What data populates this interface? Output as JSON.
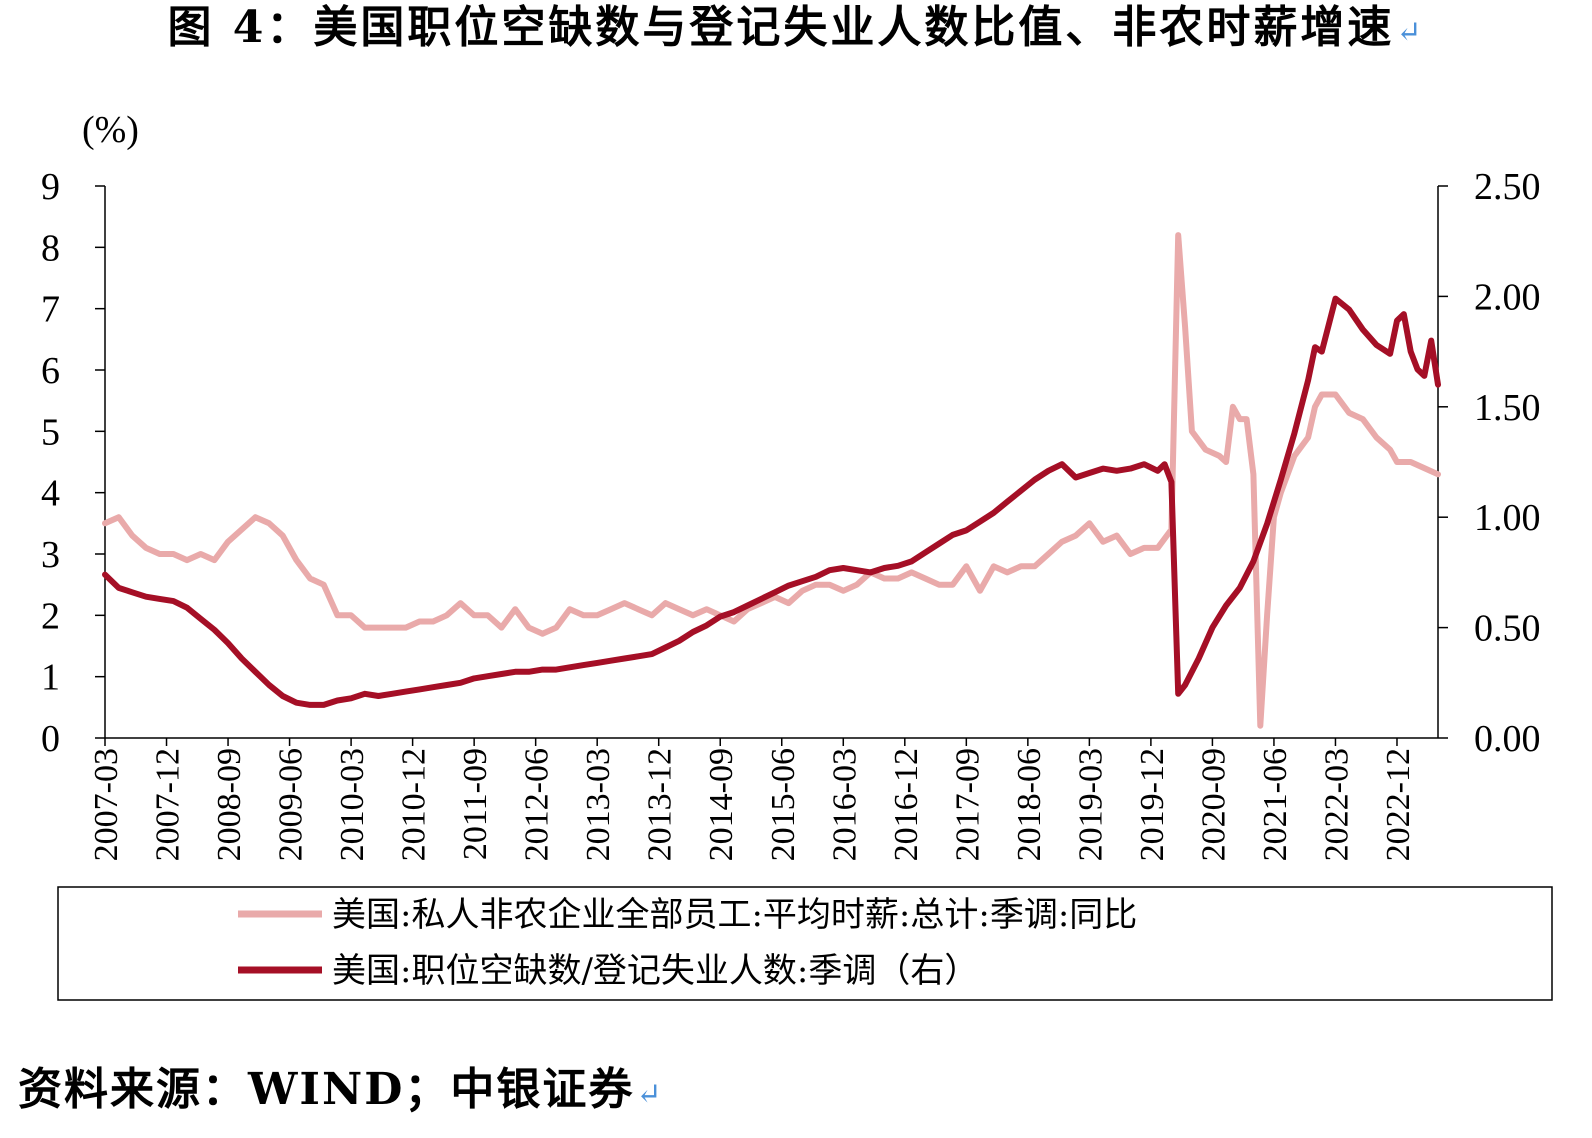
{
  "figure": {
    "title": "图 4：美国职位空缺数与登记失业人数比值、非农时薪增速",
    "source": "资料来源：WIND；中银证券",
    "return_mark": "↵"
  },
  "chart_data": {
    "type": "line",
    "ylabel_left": "(%)",
    "ylim_left": [
      0,
      9
    ],
    "yticks_left": [
      "0",
      "1",
      "2",
      "3",
      "4",
      "5",
      "6",
      "7",
      "8",
      "9"
    ],
    "ylim_right": [
      0,
      2.5
    ],
    "yticks_right": [
      "0.00",
      "0.50",
      "1.00",
      "1.50",
      "2.00",
      "2.50"
    ],
    "x_start": "2007-03",
    "x_end": "2023-06",
    "xticks": [
      "2007-03",
      "2007-12",
      "2008-09",
      "2009-06",
      "2010-03",
      "2010-12",
      "2011-09",
      "2012-06",
      "2013-03",
      "2013-12",
      "2014-09",
      "2015-06",
      "2016-03",
      "2016-12",
      "2017-09",
      "2018-06",
      "2019-03",
      "2019-12",
      "2020-09",
      "2021-06",
      "2022-03",
      "2022-12"
    ],
    "legend_position": "bottom",
    "series": [
      {
        "name": "美国:私人非农企业全部员工:平均时薪:总计:季调:同比",
        "axis": "left",
        "color": "#e9aaaa",
        "points": [
          [
            "2007-03",
            3.5
          ],
          [
            "2007-05",
            3.6
          ],
          [
            "2007-07",
            3.3
          ],
          [
            "2007-09",
            3.1
          ],
          [
            "2007-11",
            3.0
          ],
          [
            "2008-01",
            3.0
          ],
          [
            "2008-03",
            2.9
          ],
          [
            "2008-05",
            3.0
          ],
          [
            "2008-07",
            2.9
          ],
          [
            "2008-09",
            3.2
          ],
          [
            "2008-11",
            3.4
          ],
          [
            "2009-01",
            3.6
          ],
          [
            "2009-03",
            3.5
          ],
          [
            "2009-05",
            3.3
          ],
          [
            "2009-07",
            2.9
          ],
          [
            "2009-09",
            2.6
          ],
          [
            "2009-11",
            2.5
          ],
          [
            "2010-01",
            2.0
          ],
          [
            "2010-03",
            2.0
          ],
          [
            "2010-05",
            1.8
          ],
          [
            "2010-07",
            1.8
          ],
          [
            "2010-09",
            1.8
          ],
          [
            "2010-11",
            1.8
          ],
          [
            "2011-01",
            1.9
          ],
          [
            "2011-03",
            1.9
          ],
          [
            "2011-05",
            2.0
          ],
          [
            "2011-07",
            2.2
          ],
          [
            "2011-09",
            2.0
          ],
          [
            "2011-11",
            2.0
          ],
          [
            "2012-01",
            1.8
          ],
          [
            "2012-03",
            2.1
          ],
          [
            "2012-05",
            1.8
          ],
          [
            "2012-07",
            1.7
          ],
          [
            "2012-09",
            1.8
          ],
          [
            "2012-11",
            2.1
          ],
          [
            "2013-01",
            2.0
          ],
          [
            "2013-03",
            2.0
          ],
          [
            "2013-05",
            2.1
          ],
          [
            "2013-07",
            2.2
          ],
          [
            "2013-09",
            2.1
          ],
          [
            "2013-11",
            2.0
          ],
          [
            "2014-01",
            2.2
          ],
          [
            "2014-03",
            2.1
          ],
          [
            "2014-05",
            2.0
          ],
          [
            "2014-07",
            2.1
          ],
          [
            "2014-09",
            2.0
          ],
          [
            "2014-11",
            1.9
          ],
          [
            "2015-01",
            2.1
          ],
          [
            "2015-03",
            2.2
          ],
          [
            "2015-05",
            2.3
          ],
          [
            "2015-07",
            2.2
          ],
          [
            "2015-09",
            2.4
          ],
          [
            "2015-11",
            2.5
          ],
          [
            "2016-01",
            2.5
          ],
          [
            "2016-03",
            2.4
          ],
          [
            "2016-05",
            2.5
          ],
          [
            "2016-07",
            2.7
          ],
          [
            "2016-09",
            2.6
          ],
          [
            "2016-11",
            2.6
          ],
          [
            "2017-01",
            2.7
          ],
          [
            "2017-03",
            2.6
          ],
          [
            "2017-05",
            2.5
          ],
          [
            "2017-07",
            2.5
          ],
          [
            "2017-09",
            2.8
          ],
          [
            "2017-11",
            2.4
          ],
          [
            "2018-01",
            2.8
          ],
          [
            "2018-03",
            2.7
          ],
          [
            "2018-05",
            2.8
          ],
          [
            "2018-07",
            2.8
          ],
          [
            "2018-09",
            3.0
          ],
          [
            "2018-11",
            3.2
          ],
          [
            "2019-01",
            3.3
          ],
          [
            "2019-03",
            3.5
          ],
          [
            "2019-05",
            3.2
          ],
          [
            "2019-07",
            3.3
          ],
          [
            "2019-09",
            3.0
          ],
          [
            "2019-11",
            3.1
          ],
          [
            "2020-01",
            3.1
          ],
          [
            "2020-03",
            3.4
          ],
          [
            "2020-04",
            8.2
          ],
          [
            "2020-05",
            6.7
          ],
          [
            "2020-06",
            5.0
          ],
          [
            "2020-08",
            4.7
          ],
          [
            "2020-10",
            4.6
          ],
          [
            "2020-11",
            4.5
          ],
          [
            "2020-12",
            5.4
          ],
          [
            "2021-01",
            5.2
          ],
          [
            "2021-02",
            5.2
          ],
          [
            "2021-03",
            4.3
          ],
          [
            "2021-04",
            0.2
          ],
          [
            "2021-05",
            2.0
          ],
          [
            "2021-06",
            3.6
          ],
          [
            "2021-07",
            4.0
          ],
          [
            "2021-09",
            4.6
          ],
          [
            "2021-11",
            4.9
          ],
          [
            "2021-12",
            5.4
          ],
          [
            "2022-01",
            5.6
          ],
          [
            "2022-03",
            5.6
          ],
          [
            "2022-05",
            5.3
          ],
          [
            "2022-07",
            5.2
          ],
          [
            "2022-09",
            4.9
          ],
          [
            "2022-11",
            4.7
          ],
          [
            "2022-12",
            4.5
          ],
          [
            "2023-02",
            4.5
          ],
          [
            "2023-04",
            4.4
          ],
          [
            "2023-06",
            4.3
          ]
        ]
      },
      {
        "name": "美国:职位空缺数/登记失业人数:季调（右）",
        "axis": "right",
        "color": "#a50f26",
        "points": [
          [
            "2007-03",
            0.74
          ],
          [
            "2007-05",
            0.68
          ],
          [
            "2007-07",
            0.66
          ],
          [
            "2007-09",
            0.64
          ],
          [
            "2007-11",
            0.63
          ],
          [
            "2008-01",
            0.62
          ],
          [
            "2008-03",
            0.59
          ],
          [
            "2008-05",
            0.54
          ],
          [
            "2008-07",
            0.49
          ],
          [
            "2008-09",
            0.43
          ],
          [
            "2008-11",
            0.36
          ],
          [
            "2009-01",
            0.3
          ],
          [
            "2009-03",
            0.24
          ],
          [
            "2009-05",
            0.19
          ],
          [
            "2009-07",
            0.16
          ],
          [
            "2009-09",
            0.15
          ],
          [
            "2009-11",
            0.15
          ],
          [
            "2010-01",
            0.17
          ],
          [
            "2010-03",
            0.18
          ],
          [
            "2010-05",
            0.2
          ],
          [
            "2010-07",
            0.19
          ],
          [
            "2010-09",
            0.2
          ],
          [
            "2010-11",
            0.21
          ],
          [
            "2011-01",
            0.22
          ],
          [
            "2011-03",
            0.23
          ],
          [
            "2011-05",
            0.24
          ],
          [
            "2011-07",
            0.25
          ],
          [
            "2011-09",
            0.27
          ],
          [
            "2011-11",
            0.28
          ],
          [
            "2012-01",
            0.29
          ],
          [
            "2012-03",
            0.3
          ],
          [
            "2012-05",
            0.3
          ],
          [
            "2012-07",
            0.31
          ],
          [
            "2012-09",
            0.31
          ],
          [
            "2012-11",
            0.32
          ],
          [
            "2013-01",
            0.33
          ],
          [
            "2013-03",
            0.34
          ],
          [
            "2013-05",
            0.35
          ],
          [
            "2013-07",
            0.36
          ],
          [
            "2013-09",
            0.37
          ],
          [
            "2013-11",
            0.38
          ],
          [
            "2014-01",
            0.41
          ],
          [
            "2014-03",
            0.44
          ],
          [
            "2014-05",
            0.48
          ],
          [
            "2014-07",
            0.51
          ],
          [
            "2014-09",
            0.55
          ],
          [
            "2014-11",
            0.57
          ],
          [
            "2015-01",
            0.6
          ],
          [
            "2015-03",
            0.63
          ],
          [
            "2015-05",
            0.66
          ],
          [
            "2015-07",
            0.69
          ],
          [
            "2015-09",
            0.71
          ],
          [
            "2015-11",
            0.73
          ],
          [
            "2016-01",
            0.76
          ],
          [
            "2016-03",
            0.77
          ],
          [
            "2016-05",
            0.76
          ],
          [
            "2016-07",
            0.75
          ],
          [
            "2016-09",
            0.77
          ],
          [
            "2016-11",
            0.78
          ],
          [
            "2017-01",
            0.8
          ],
          [
            "2017-03",
            0.84
          ],
          [
            "2017-05",
            0.88
          ],
          [
            "2017-07",
            0.92
          ],
          [
            "2017-09",
            0.94
          ],
          [
            "2017-11",
            0.98
          ],
          [
            "2018-01",
            1.02
          ],
          [
            "2018-03",
            1.07
          ],
          [
            "2018-05",
            1.12
          ],
          [
            "2018-07",
            1.17
          ],
          [
            "2018-09",
            1.21
          ],
          [
            "2018-11",
            1.24
          ],
          [
            "2019-01",
            1.18
          ],
          [
            "2019-03",
            1.2
          ],
          [
            "2019-05",
            1.22
          ],
          [
            "2019-07",
            1.21
          ],
          [
            "2019-09",
            1.22
          ],
          [
            "2019-11",
            1.24
          ],
          [
            "2020-01",
            1.21
          ],
          [
            "2020-02",
            1.24
          ],
          [
            "2020-03",
            1.16
          ],
          [
            "2020-04",
            0.2
          ],
          [
            "2020-05",
            0.24
          ],
          [
            "2020-07",
            0.36
          ],
          [
            "2020-09",
            0.5
          ],
          [
            "2020-11",
            0.6
          ],
          [
            "2021-01",
            0.68
          ],
          [
            "2021-03",
            0.8
          ],
          [
            "2021-05",
            0.97
          ],
          [
            "2021-07",
            1.17
          ],
          [
            "2021-09",
            1.38
          ],
          [
            "2021-11",
            1.62
          ],
          [
            "2021-12",
            1.77
          ],
          [
            "2022-01",
            1.75
          ],
          [
            "2022-03",
            1.99
          ],
          [
            "2022-05",
            1.94
          ],
          [
            "2022-07",
            1.85
          ],
          [
            "2022-09",
            1.78
          ],
          [
            "2022-11",
            1.74
          ],
          [
            "2022-12",
            1.89
          ],
          [
            "2023-01",
            1.92
          ],
          [
            "2023-02",
            1.75
          ],
          [
            "2023-03",
            1.67
          ],
          [
            "2023-04",
            1.64
          ],
          [
            "2023-05",
            1.8
          ],
          [
            "2023-06",
            1.6
          ]
        ]
      }
    ]
  }
}
